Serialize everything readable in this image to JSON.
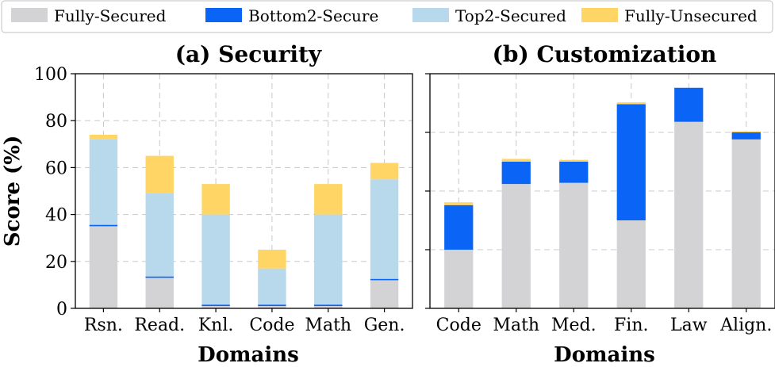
{
  "colors": {
    "fully_secured": "#d3d3d6",
    "bottom2_secure": "#0a64f5",
    "top2_secured": "#b8d8ec",
    "fully_unsecured": "#ffd666",
    "grid": "#c8c8c8"
  },
  "legend": [
    {
      "label": "Fully-Secured",
      "color_key": "fully_secured"
    },
    {
      "label": "Bottom2-Secure",
      "color_key": "bottom2_secure"
    },
    {
      "label": "Top2-Secured",
      "color_key": "top2_secured"
    },
    {
      "label": "Fully-Unsecured",
      "color_key": "fully_unsecured"
    }
  ],
  "ylabel": "Score (%)",
  "chart_data": [
    {
      "type": "bar",
      "stacked": true,
      "title": "(a) Security",
      "xlabel": "Domains",
      "ylabel": "Score (%)",
      "ylim": [
        0,
        100
      ],
      "yticks": [
        0,
        20,
        40,
        60,
        80,
        100
      ],
      "show_ytick_labels": true,
      "categories": [
        "Rsn.",
        "Read.",
        "Knl.",
        "Code",
        "Math",
        "Gen."
      ],
      "series": [
        {
          "name": "Fully-Secured",
          "color_key": "fully_secured",
          "values": [
            35,
            13,
            1,
            1,
            1,
            12
          ]
        },
        {
          "name": "Bottom2-Secure",
          "color_key": "bottom2_secure",
          "values": [
            0.6,
            0.6,
            0.6,
            0.6,
            0.6,
            0.6
          ]
        },
        {
          "name": "Top2-Secured",
          "color_key": "top2_secured",
          "values": [
            36.4,
            35.4,
            38.4,
            15.4,
            38.4,
            42.4
          ]
        },
        {
          "name": "Fully-Unsecured",
          "color_key": "fully_unsecured",
          "values": [
            2,
            16,
            13,
            8,
            13,
            7
          ]
        }
      ]
    },
    {
      "type": "bar",
      "stacked": true,
      "title": "(b) Customization",
      "xlabel": "Domains",
      "ylabel": "",
      "ylim": [
        0,
        100
      ],
      "yticks": [
        0,
        25,
        50,
        75,
        100
      ],
      "show_ytick_labels": false,
      "categories": [
        "Code",
        "Math",
        "Med.",
        "Fin.",
        "Law",
        "Align."
      ],
      "series": [
        {
          "name": "Fully-Secured",
          "color_key": "fully_secured",
          "values": [
            25,
            53,
            53.5,
            37.5,
            79.5,
            72
          ]
        },
        {
          "name": "Bottom2-Secure",
          "color_key": "bottom2_secure",
          "values": [
            19,
            9.5,
            9,
            49.5,
            14.5,
            3
          ]
        },
        {
          "name": "Top2-Secured",
          "color_key": "top2_secured",
          "values": [
            0,
            0,
            0,
            0,
            0,
            0
          ]
        },
        {
          "name": "Fully-Unsecured",
          "color_key": "fully_unsecured",
          "values": [
            1.2,
            1.2,
            0.8,
            0.8,
            0,
            0.5
          ]
        }
      ]
    }
  ]
}
